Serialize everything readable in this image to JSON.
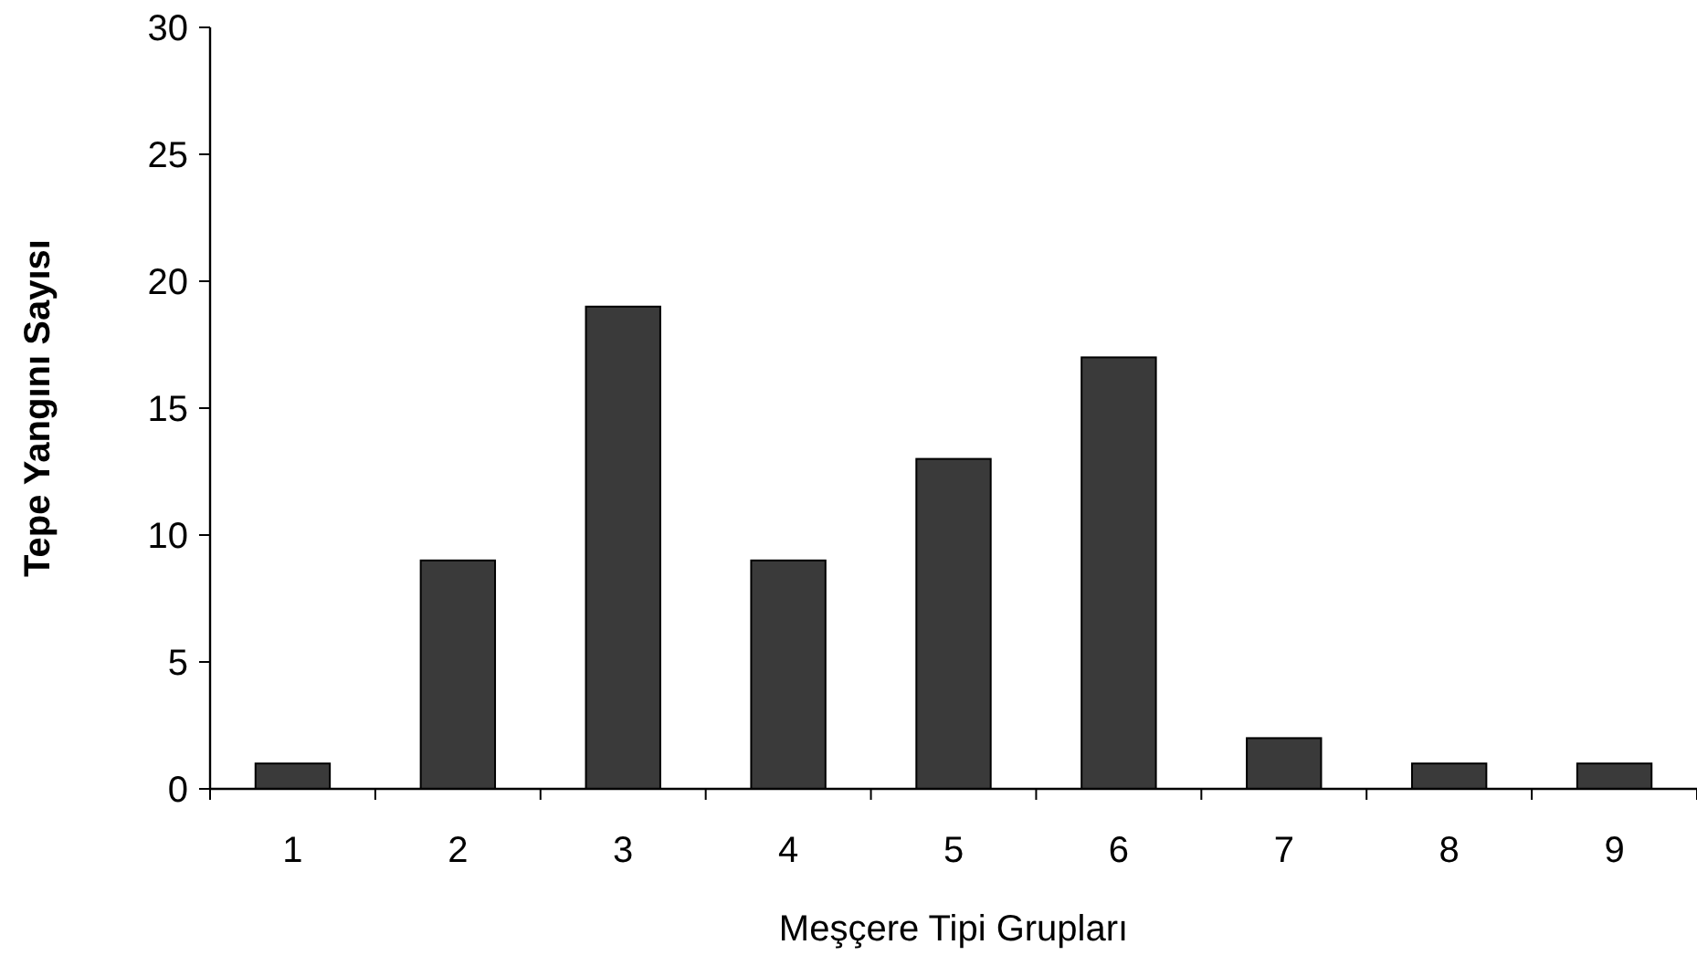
{
  "chart_data": {
    "type": "bar",
    "xlabel": "Meşçere Tipi Grupları",
    "ylabel": "Tepe Yangını Sayısı",
    "categories": [
      "1",
      "2",
      "3",
      "4",
      "5",
      "6",
      "7",
      "8",
      "9"
    ],
    "values": [
      1,
      9,
      19,
      9,
      13,
      17,
      2,
      1,
      1
    ],
    "color": "#3a3a3a",
    "ylim": [
      0,
      30
    ],
    "yticks": [
      0,
      5,
      10,
      15,
      20,
      25,
      30
    ],
    "grid": false
  }
}
